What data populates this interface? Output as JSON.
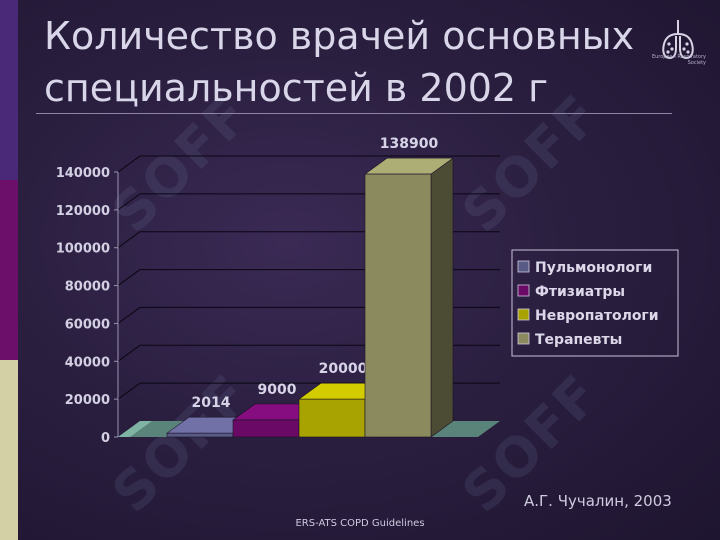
{
  "slide": {
    "title_line1": "Количество врачей основных",
    "title_line2": "специальностей в 2002 г",
    "author": "А.Г. Чучалин, 2003",
    "footer": "ERS-ATS COPD Guidelines",
    "logo_text": "European Respiratory Society",
    "watermark": "SOFF"
  },
  "colors": {
    "sidebar_top": "#4a2a78",
    "sidebar_mid": "#6b0f6b",
    "sidebar_bottom": "#d2d0a4"
  },
  "chart_data": {
    "type": "bar",
    "title": "",
    "xlabel": "",
    "ylabel": "",
    "ylim": [
      0,
      140000
    ],
    "yticks": [
      "140000",
      "120000",
      "100000",
      "80000",
      "60000",
      "40000",
      "20000",
      "0"
    ],
    "grid": true,
    "legend_position": "right",
    "series": [
      {
        "name": "Пульмонологи",
        "value": 2014,
        "label": "2014",
        "color": "#5a5a86"
      },
      {
        "name": "Фтизиатры",
        "value": 9000,
        "label": "9000",
        "color": "#6a0a66"
      },
      {
        "name": "Невропатологи",
        "value": 20000,
        "label": "20000",
        "color": "#a8a300"
      },
      {
        "name": "Терапевты",
        "value": 138900,
        "label": "138900",
        "color": "#8a8a5e"
      }
    ]
  }
}
